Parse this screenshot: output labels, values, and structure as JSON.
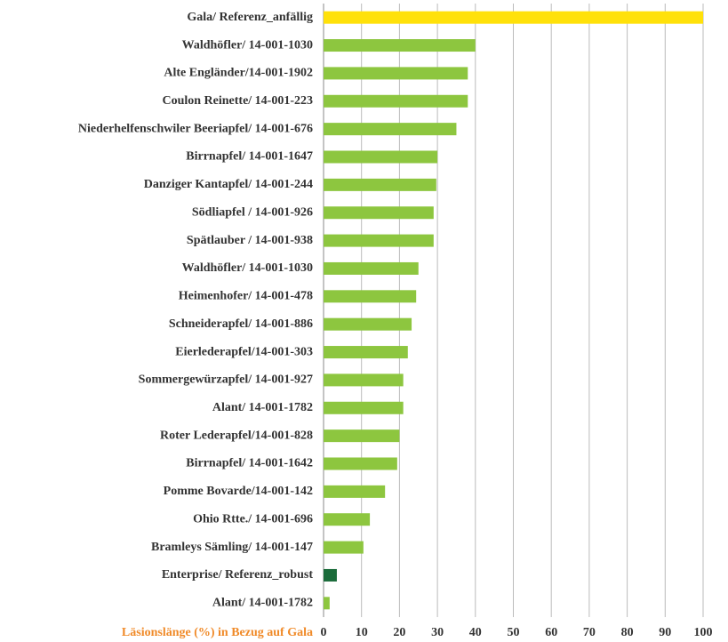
{
  "chart_data": {
    "type": "barh",
    "xlabel": "Läsionslänge (%) in Bezug auf Gala",
    "categories": [
      "Gala/ Referenz_anfällig",
      "Waldhöfler/ 14-001-1030",
      "Alte Engländer/14-001-1902",
      "Coulon Reinette/ 14-001-223",
      "Niederhelfenschwiler Beeriapfel/ 14-001-676",
      "Birrnapfel/ 14-001-1647",
      "Danziger Kantapfel/ 14-001-244",
      "Södliapfel / 14-001-926",
      "Spätlauber / 14-001-938",
      "Waldhöfler/ 14-001-1030",
      "Heimenhofer/ 14-001-478",
      "Schneiderapfel/ 14-001-886",
      "Eierlederapfel/14-001-303",
      "Sommergewürzapfel/ 14-001-927",
      "Alant/ 14-001-1782",
      "Roter Lederapfel/14-001-828",
      "Birrnapfel/ 14-001-1642",
      "Pomme Bovarde/14-001-142",
      "Ohio Rtte./ 14-001-696",
      "Bramleys Sämling/ 14-001-147",
      "Enterprise/ Referenz_robust",
      "Alant/ 14-001-1782"
    ],
    "values": [
      100,
      40,
      38,
      38,
      35,
      30,
      29.7,
      29,
      29,
      25,
      24.4,
      23.2,
      22.2,
      21,
      21,
      20,
      19.4,
      16.2,
      12.2,
      10.5,
      3.5,
      1.6
    ],
    "colors": [
      "#ffe10a",
      "#8dc63f",
      "#8dc63f",
      "#8dc63f",
      "#8dc63f",
      "#8dc63f",
      "#8dc63f",
      "#8dc63f",
      "#8dc63f",
      "#8dc63f",
      "#8dc63f",
      "#8dc63f",
      "#8dc63f",
      "#8dc63f",
      "#8dc63f",
      "#8dc63f",
      "#8dc63f",
      "#8dc63f",
      "#8dc63f",
      "#8dc63f",
      "#1a6b3a",
      "#8dc63f"
    ],
    "xlim": [
      0,
      100
    ],
    "xticks": [
      0,
      10,
      20,
      30,
      40,
      50,
      60,
      70,
      80,
      90,
      100
    ],
    "grid": true
  }
}
